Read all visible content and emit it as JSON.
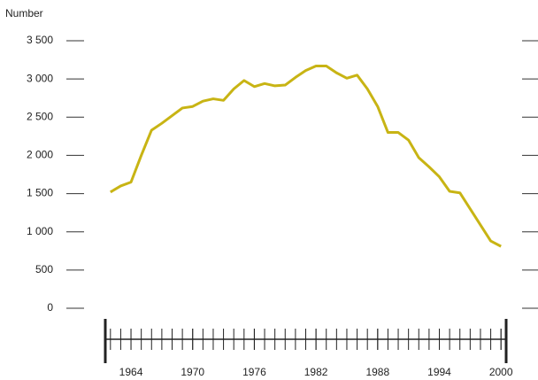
{
  "chart_data": {
    "type": "line",
    "y_axis_label": "Number",
    "x": [
      1962,
      1963,
      1964,
      1965,
      1966,
      1967,
      1968,
      1969,
      1970,
      1971,
      1972,
      1973,
      1974,
      1975,
      1976,
      1977,
      1978,
      1979,
      1980,
      1981,
      1982,
      1983,
      1984,
      1985,
      1986,
      1987,
      1988,
      1989,
      1990,
      1991,
      1992,
      1993,
      1994,
      1995,
      1996,
      1997,
      1998,
      1999,
      2000
    ],
    "series": [
      {
        "color": "#c8b414",
        "values": [
          1520,
          1600,
          1650,
          2000,
          2330,
          2420,
          2520,
          2620,
          2640,
          2710,
          2740,
          2720,
          2870,
          2980,
          2900,
          2940,
          2910,
          2920,
          3020,
          3110,
          3170,
          3170,
          3080,
          3010,
          3050,
          2870,
          2640,
          2300,
          2300,
          2200,
          1970,
          1850,
          1720,
          1530,
          1510,
          1300,
          1090,
          880,
          810
        ]
      }
    ],
    "xlim": [
      1961.5,
      2000.5
    ],
    "xticks": [
      1964,
      1970,
      1976,
      1982,
      1988,
      1994,
      2000
    ],
    "ylim": [
      0,
      3500
    ],
    "yticks": [
      0,
      500,
      {
        "value": 1000,
        "label": "1 000"
      },
      {
        "value": 1500,
        "label": "1 500"
      },
      {
        "value": 2000,
        "label": "2 000"
      },
      {
        "value": 2500,
        "label": "2 500"
      },
      {
        "value": 3000,
        "label": "3 000"
      },
      {
        "value": 3500,
        "label": "3 500"
      }
    ],
    "grid": true
  }
}
